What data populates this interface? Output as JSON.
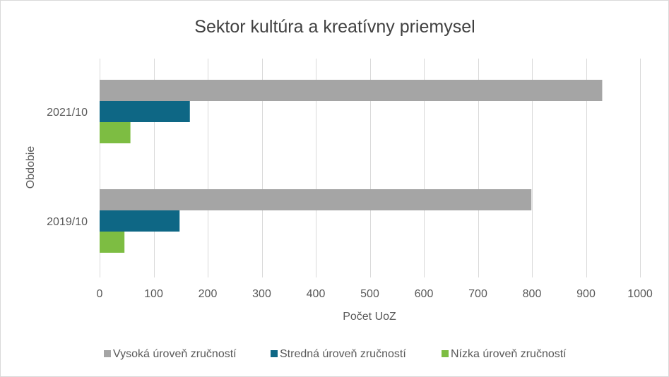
{
  "chart_data": {
    "type": "bar",
    "orientation": "horizontal",
    "title": "Sektor kultúra a kreatívny priemysel",
    "xlabel": "Počet UoZ",
    "ylabel": "Obdobie",
    "categories": [
      "2021/10",
      "2019/10"
    ],
    "series": [
      {
        "name": "Vysoká úroveň zručností",
        "color": "#a5a5a5",
        "values": [
          930,
          799
        ]
      },
      {
        "name": "Stredná úroveň zručností",
        "color": "#0e6785",
        "values": [
          167,
          148
        ]
      },
      {
        "name": "Nízka úroveň zručností",
        "color": "#7dbd42",
        "values": [
          57,
          46
        ]
      }
    ],
    "xlim": [
      0,
      1000
    ],
    "xticks": [
      0,
      100,
      200,
      300,
      400,
      500,
      600,
      700,
      800,
      900,
      1000
    ],
    "grid": "vertical",
    "legend_position": "bottom"
  }
}
